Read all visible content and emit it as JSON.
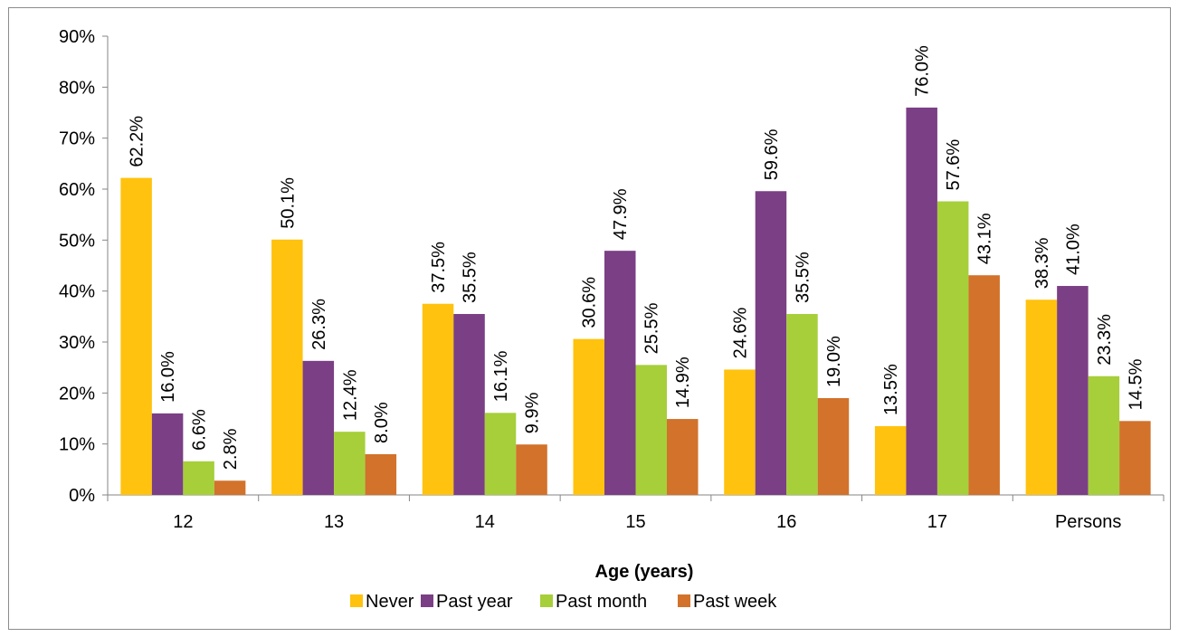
{
  "chart_data": {
    "type": "bar",
    "title": "",
    "xlabel": "Age (years)",
    "ylabel": "",
    "categories": [
      "12",
      "13",
      "14",
      "15",
      "16",
      "17",
      "Persons"
    ],
    "series": [
      {
        "name": "Never",
        "color": "#ffc20e",
        "values": [
          62.2,
          50.1,
          37.5,
          30.6,
          24.6,
          13.5,
          38.3
        ]
      },
      {
        "name": "Past year",
        "color": "#7b3f85",
        "values": [
          16.0,
          26.3,
          35.5,
          47.9,
          59.6,
          76.0,
          41.0
        ]
      },
      {
        "name": "Past month",
        "color": "#a6cf3a",
        "values": [
          6.6,
          12.4,
          16.1,
          25.5,
          35.5,
          57.6,
          23.3
        ]
      },
      {
        "name": "Past week",
        "color": "#d2722b",
        "values": [
          2.8,
          8.0,
          9.9,
          14.9,
          19.0,
          43.1,
          14.5
        ]
      }
    ],
    "ylim": [
      0,
      90
    ],
    "yticks": [
      "0%",
      "10%",
      "20%",
      "30%",
      "40%",
      "50%",
      "60%",
      "70%",
      "80%",
      "90%"
    ],
    "data_labels": [
      [
        "62.2%",
        "50.1%",
        "37.5%",
        "30.6%",
        "24.6%",
        "13.5%",
        "38.3%"
      ],
      [
        "16.0%",
        "26.3%",
        "35.5%",
        "47.9%",
        "59.6%",
        "76.0%",
        "41.0%"
      ],
      [
        "6.6%",
        "12.4%",
        "16.1%",
        "25.5%",
        "35.5%",
        "57.6%",
        "23.3%"
      ],
      [
        "2.8%",
        "8.0%",
        "9.9%",
        "14.9%",
        "19.0%",
        "43.1%",
        "14.5%"
      ]
    ],
    "grid": false,
    "legend_position": "bottom"
  }
}
